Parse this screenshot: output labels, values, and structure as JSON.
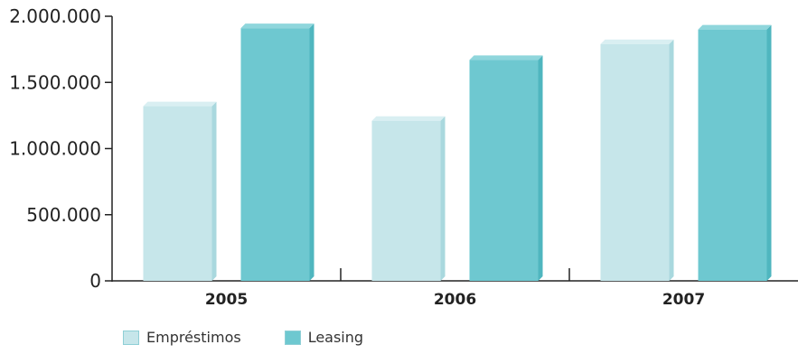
{
  "chart_data": {
    "type": "bar",
    "categories": [
      "2005",
      "2006",
      "2007"
    ],
    "series": [
      {
        "name": "Empréstimos",
        "values": [
          1320000,
          1210000,
          1790000
        ],
        "color": "#c6e6ea"
      },
      {
        "name": "Leasing",
        "values": [
          1910000,
          1670000,
          1900000
        ],
        "color": "#6ec8d0"
      }
    ],
    "ylim": [
      0,
      2000000
    ],
    "yticks": [
      {
        "value": 0,
        "label": "0"
      },
      {
        "value": 500000,
        "label": "500.000"
      },
      {
        "value": 1000000,
        "label": "1.000.000"
      },
      {
        "value": 1500000,
        "label": "1.500.000"
      },
      {
        "value": 2000000,
        "label": "2.000.000"
      }
    ],
    "grid": false,
    "legend_position": "bottom-left",
    "title": "",
    "xlabel": "",
    "ylabel": ""
  }
}
